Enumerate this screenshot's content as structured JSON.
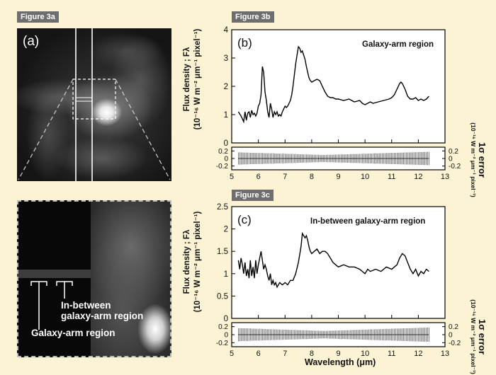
{
  "figure_tags": {
    "a": "Figure 3a",
    "b": "Figure 3b",
    "c": "Figure 3c"
  },
  "panel_a": {
    "label": "(a)",
    "crop_labels": {
      "in_between_line1": "In-between",
      "in_between_line2": "galaxy-arm region",
      "arm": "Galaxy-arm region"
    }
  },
  "axes_text": {
    "ylabel_line1": "Flux density ; Fλ",
    "ylabel_line2": "(10⁻¹⁶ W m⁻² μm⁻¹ pixel⁻¹)",
    "err_label_line1": "1σ error",
    "err_label_line2": "(10⁻¹⁶ W m⁻² μm⁻¹ pixel⁻¹)",
    "xlabel": "Wavelength (μm)"
  },
  "chart_data": [
    {
      "type": "line",
      "panel_label": "(b)",
      "title": "Galaxy-arm region",
      "xlim": [
        5,
        13
      ],
      "ylim": [
        0,
        4
      ],
      "x_ticks": [
        "5",
        "6",
        "7",
        "8",
        "9",
        "10",
        "11",
        "12",
        "13"
      ],
      "y_ticks": [
        "0",
        "1",
        "2",
        "3",
        "4"
      ],
      "err_ticks": [
        "0.2",
        "0",
        "-0.2"
      ],
      "err_ylim": [
        -0.3,
        0.3
      ],
      "x": [
        5.25,
        5.35,
        5.45,
        5.5,
        5.55,
        5.6,
        5.65,
        5.7,
        5.75,
        5.8,
        5.85,
        5.9,
        5.95,
        6.0,
        6.05,
        6.1,
        6.15,
        6.2,
        6.25,
        6.3,
        6.35,
        6.4,
        6.45,
        6.5,
        6.55,
        6.6,
        6.65,
        6.7,
        6.75,
        6.8,
        6.85,
        6.9,
        6.95,
        7.0,
        7.05,
        7.1,
        7.15,
        7.2,
        7.25,
        7.3,
        7.35,
        7.4,
        7.45,
        7.5,
        7.55,
        7.6,
        7.65,
        7.7,
        7.75,
        7.8,
        7.85,
        7.9,
        7.95,
        8.0,
        8.1,
        8.2,
        8.3,
        8.4,
        8.5,
        8.6,
        8.7,
        8.8,
        8.9,
        9.0,
        9.2,
        9.4,
        9.6,
        9.8,
        9.9,
        10.0,
        10.1,
        10.2,
        10.3,
        10.5,
        10.7,
        10.9,
        11.0,
        11.1,
        11.2,
        11.3,
        11.35,
        11.4,
        11.5,
        11.6,
        11.7,
        11.8,
        11.9,
        12.0,
        12.1,
        12.2,
        12.3,
        12.4
      ],
      "y": [
        1.1,
        0.95,
        0.75,
        1.1,
        0.8,
        1.05,
        1.1,
        0.9,
        1.15,
        1.0,
        1.05,
        0.95,
        1.05,
        1.3,
        1.4,
        1.7,
        2.7,
        2.5,
        1.8,
        1.5,
        1.1,
        0.9,
        1.4,
        1.2,
        0.9,
        1.1,
        1.0,
        1.1,
        0.95,
        1.0,
        0.95,
        1.1,
        1.2,
        1.3,
        1.25,
        1.3,
        1.4,
        1.5,
        1.7,
        2.0,
        2.4,
        2.8,
        3.1,
        3.4,
        3.35,
        3.2,
        3.25,
        3.1,
        2.95,
        2.7,
        2.5,
        2.3,
        2.2,
        2.15,
        2.2,
        2.25,
        2.2,
        2.0,
        1.8,
        1.65,
        1.6,
        1.6,
        1.55,
        1.55,
        1.5,
        1.55,
        1.45,
        1.5,
        1.4,
        1.35,
        1.4,
        1.45,
        1.4,
        1.45,
        1.5,
        1.55,
        1.6,
        1.7,
        1.9,
        2.1,
        2.15,
        2.1,
        1.9,
        1.65,
        1.55,
        1.55,
        1.6,
        1.5,
        1.55,
        1.5,
        1.55,
        1.65
      ]
    },
    {
      "type": "line",
      "panel_label": "(c)",
      "title": "In-between galaxy-arm region",
      "xlim": [
        5,
        13
      ],
      "ylim": [
        0,
        2.5
      ],
      "x_ticks": [
        "5",
        "6",
        "7",
        "8",
        "9",
        "10",
        "11",
        "12",
        "13"
      ],
      "y_ticks": [
        "0",
        "0.5",
        "1",
        "1.5",
        "2",
        "2.5"
      ],
      "err_ticks": [
        "0.2",
        "0",
        "-0.2"
      ],
      "err_ylim": [
        -0.3,
        0.3
      ],
      "x": [
        5.25,
        5.3,
        5.35,
        5.4,
        5.45,
        5.5,
        5.55,
        5.6,
        5.65,
        5.7,
        5.75,
        5.8,
        5.85,
        5.9,
        5.95,
        6.0,
        6.05,
        6.1,
        6.15,
        6.2,
        6.25,
        6.3,
        6.35,
        6.4,
        6.45,
        6.5,
        6.55,
        6.6,
        6.65,
        6.7,
        6.8,
        6.9,
        7.0,
        7.1,
        7.2,
        7.3,
        7.4,
        7.5,
        7.6,
        7.65,
        7.7,
        7.75,
        7.8,
        7.85,
        7.9,
        7.95,
        8.0,
        8.1,
        8.2,
        8.3,
        8.4,
        8.5,
        8.6,
        8.7,
        8.8,
        8.9,
        9.0,
        9.2,
        9.4,
        9.6,
        9.8,
        9.9,
        10.0,
        10.1,
        10.2,
        10.4,
        10.6,
        10.8,
        11.0,
        11.1,
        11.2,
        11.3,
        11.4,
        11.5,
        11.6,
        11.7,
        11.8,
        11.9,
        12.0,
        12.1,
        12.2,
        12.3,
        12.4
      ],
      "y": [
        1.3,
        1.1,
        1.35,
        1.2,
        1.0,
        1.25,
        0.95,
        1.1,
        0.9,
        1.3,
        0.95,
        1.15,
        0.9,
        1.3,
        1.0,
        1.2,
        1.35,
        1.5,
        1.3,
        1.1,
        1.2,
        1.1,
        0.95,
        0.85,
        1.0,
        0.75,
        0.85,
        0.75,
        0.8,
        0.7,
        0.8,
        0.75,
        0.8,
        0.75,
        0.85,
        0.85,
        1.0,
        1.25,
        1.6,
        1.9,
        1.85,
        1.8,
        1.85,
        1.75,
        1.6,
        1.5,
        1.45,
        1.5,
        1.55,
        1.45,
        1.5,
        1.5,
        1.45,
        1.35,
        1.25,
        1.2,
        1.15,
        1.2,
        1.15,
        1.15,
        1.1,
        1.05,
        1.0,
        1.1,
        1.05,
        1.1,
        1.05,
        1.15,
        1.1,
        1.15,
        1.2,
        1.35,
        1.45,
        1.4,
        1.25,
        1.1,
        1.0,
        1.1,
        0.95,
        1.05,
        1.0,
        1.1,
        1.05
      ]
    }
  ]
}
